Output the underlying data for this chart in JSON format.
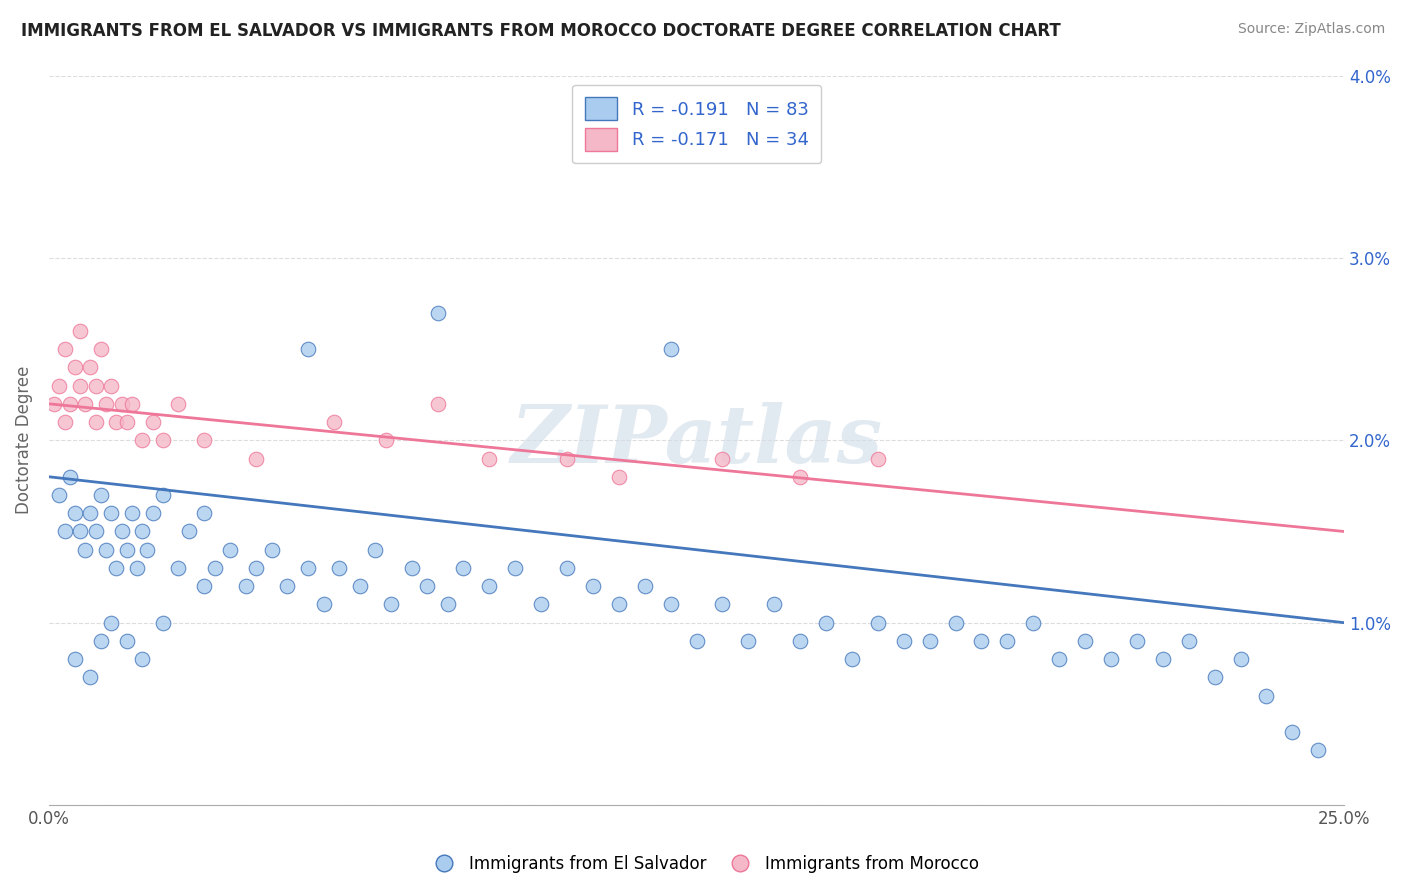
{
  "title": "IMMIGRANTS FROM EL SALVADOR VS IMMIGRANTS FROM MOROCCO DOCTORATE DEGREE CORRELATION CHART",
  "source": "Source: ZipAtlas.com",
  "ylabel": "Doctorate Degree",
  "legend_label_blue": "Immigrants from El Salvador",
  "legend_label_pink": "Immigrants from Morocco",
  "r_blue": -0.191,
  "n_blue": 83,
  "r_pink": -0.171,
  "n_pink": 34,
  "color_blue": "#aaccee",
  "color_pink": "#f5b8c8",
  "line_color_blue": "#4477bb",
  "line_color_pink": "#ee7799",
  "text_color_stat": "#3366cc",
  "text_color_label": "#333333",
  "background_color": "#ffffff",
  "xlim": [
    0,
    0.25
  ],
  "ylim": [
    0,
    0.04
  ],
  "ytick_labels": [
    "1.0%",
    "2.0%",
    "3.0%",
    "4.0%"
  ],
  "grid_color": "#dddddd",
  "watermark": "ZIPatlas",
  "blue_x": [
    0.002,
    0.003,
    0.004,
    0.005,
    0.006,
    0.007,
    0.008,
    0.009,
    0.01,
    0.011,
    0.012,
    0.013,
    0.014,
    0.015,
    0.016,
    0.017,
    0.018,
    0.019,
    0.02,
    0.022,
    0.025,
    0.027,
    0.03,
    0.032,
    0.035,
    0.038,
    0.04,
    0.043,
    0.046,
    0.05,
    0.053,
    0.056,
    0.06,
    0.063,
    0.066,
    0.07,
    0.073,
    0.077,
    0.08,
    0.085,
    0.09,
    0.095,
    0.1,
    0.105,
    0.11,
    0.115,
    0.12,
    0.125,
    0.13,
    0.135,
    0.14,
    0.145,
    0.15,
    0.155,
    0.16,
    0.165,
    0.17,
    0.175,
    0.18,
    0.185,
    0.19,
    0.195,
    0.2,
    0.205,
    0.21,
    0.215,
    0.22,
    0.225,
    0.23,
    0.235,
    0.24,
    0.245,
    0.005,
    0.008,
    0.01,
    0.012,
    0.015,
    0.018,
    0.022,
    0.03,
    0.05,
    0.075,
    0.12
  ],
  "blue_y": [
    0.017,
    0.015,
    0.018,
    0.016,
    0.015,
    0.014,
    0.016,
    0.015,
    0.017,
    0.014,
    0.016,
    0.013,
    0.015,
    0.014,
    0.016,
    0.013,
    0.015,
    0.014,
    0.016,
    0.017,
    0.013,
    0.015,
    0.016,
    0.013,
    0.014,
    0.012,
    0.013,
    0.014,
    0.012,
    0.013,
    0.011,
    0.013,
    0.012,
    0.014,
    0.011,
    0.013,
    0.012,
    0.011,
    0.013,
    0.012,
    0.013,
    0.011,
    0.013,
    0.012,
    0.011,
    0.012,
    0.011,
    0.009,
    0.011,
    0.009,
    0.011,
    0.009,
    0.01,
    0.008,
    0.01,
    0.009,
    0.009,
    0.01,
    0.009,
    0.009,
    0.01,
    0.008,
    0.009,
    0.008,
    0.009,
    0.008,
    0.009,
    0.007,
    0.008,
    0.006,
    0.004,
    0.003,
    0.008,
    0.007,
    0.009,
    0.01,
    0.009,
    0.008,
    0.01,
    0.012,
    0.025,
    0.027,
    0.025
  ],
  "pink_x": [
    0.001,
    0.002,
    0.003,
    0.003,
    0.004,
    0.005,
    0.006,
    0.006,
    0.007,
    0.008,
    0.009,
    0.009,
    0.01,
    0.011,
    0.012,
    0.013,
    0.014,
    0.015,
    0.016,
    0.018,
    0.02,
    0.022,
    0.025,
    0.03,
    0.04,
    0.055,
    0.065,
    0.075,
    0.085,
    0.1,
    0.11,
    0.13,
    0.145,
    0.16
  ],
  "pink_y": [
    0.022,
    0.023,
    0.021,
    0.025,
    0.022,
    0.024,
    0.023,
    0.026,
    0.022,
    0.024,
    0.023,
    0.021,
    0.025,
    0.022,
    0.023,
    0.021,
    0.022,
    0.021,
    0.022,
    0.02,
    0.021,
    0.02,
    0.022,
    0.02,
    0.019,
    0.021,
    0.02,
    0.022,
    0.019,
    0.019,
    0.018,
    0.019,
    0.018,
    0.019
  ],
  "trend_blue_start": 0.018,
  "trend_blue_end": 0.01,
  "trend_pink_start": 0.022,
  "trend_pink_end": 0.015
}
